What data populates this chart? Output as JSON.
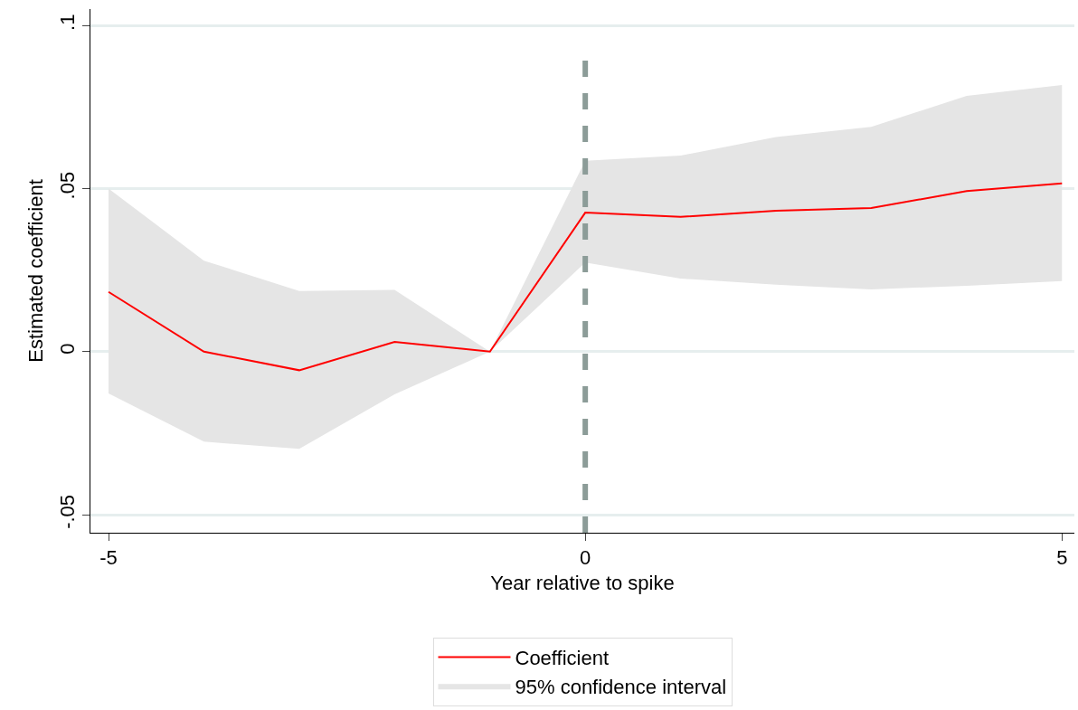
{
  "chart_data": {
    "type": "line",
    "xlabel": "Year relative to spike",
    "ylabel": "Estimated coefficient",
    "x": [
      -5,
      -4,
      -3,
      -2,
      -1,
      0,
      1,
      2,
      3,
      4,
      5
    ],
    "series": [
      {
        "name": "Coefficient",
        "color": "#ff0000",
        "values": [
          0.0183,
          0,
          -0.0057,
          0.003,
          0,
          0.0426,
          0.0413,
          0.0432,
          0.044,
          0.0492,
          0.0516
        ],
        "lower": [
          -0.0128,
          -0.0276,
          -0.0298,
          -0.0131,
          0,
          0.0273,
          0.0224,
          0.0205,
          0.0191,
          0.0202,
          0.0216
        ],
        "upper": [
          0.05,
          0.0279,
          0.0186,
          0.0189,
          0,
          0.0585,
          0.0601,
          0.0658,
          0.0689,
          0.0784,
          0.0817
        ]
      }
    ],
    "annotations": [
      "95% confidence interval"
    ],
    "xlim": [
      -5.19,
      5.13
    ],
    "xticks": [
      {
        "value": -5,
        "label": "-5"
      },
      {
        "value": 0,
        "label": "0"
      },
      {
        "value": 5,
        "label": "5"
      }
    ],
    "ylim": [
      -0.0555,
      0.105
    ],
    "yticks": [
      {
        "value": -0.05,
        "label": "-.05"
      },
      {
        "value": 0,
        "label": "0"
      },
      {
        "value": 0.05,
        "label": ".05"
      },
      {
        "value": 0.1,
        "label": ".1"
      }
    ],
    "ref_lines": [
      {
        "axis": "x",
        "value": 0,
        "color": "#8c9c98",
        "line_style": "dashed"
      }
    ],
    "grid": "y",
    "legend": "bottom",
    "line_style": "solid",
    "marker": "none"
  }
}
